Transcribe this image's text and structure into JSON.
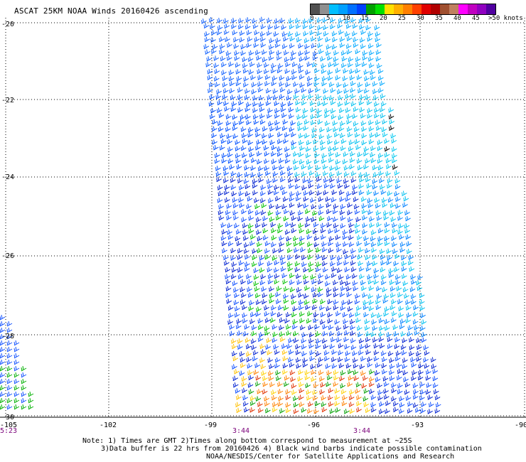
{
  "title": "ASCAT 25KM NOAA Winds 20160426 ascending",
  "colorbar": {
    "labels": [
      "0",
      "5",
      "10",
      "15",
      "20",
      "25",
      "30",
      "35",
      "40",
      "45",
      ">50 knots"
    ],
    "colors": [
      "#505050",
      "#909090",
      "#00bfff",
      "#00a0ff",
      "#0070ff",
      "#0040ff",
      "#00a000",
      "#00e000",
      "#ffe000",
      "#ffb000",
      "#ff8000",
      "#ff4000",
      "#e00000",
      "#b00000",
      "#a05030",
      "#c08060",
      "#ff00ff",
      "#c000c0",
      "#9000c0",
      "#5000a0"
    ]
  },
  "map": {
    "lat_labels": [
      "-20",
      "-22",
      "-24",
      "-26",
      "-28",
      "-30"
    ],
    "lon_labels": [
      "-105",
      "-102",
      "-99",
      "-96",
      "-93",
      "-90"
    ],
    "time_labels": [
      "5:23",
      "3:44",
      "3:44"
    ]
  },
  "notes": {
    "line1": "Note: 1) Times are GMT 2)Times along bottom correspond to measurement at ~25S",
    "line2": "3)Data buffer is 22 hrs from 20160426 4) Black wind barbs indicate possible contamination",
    "line3": "NOAA/NESDIS/Center for Satellite Applications and Research"
  }
}
